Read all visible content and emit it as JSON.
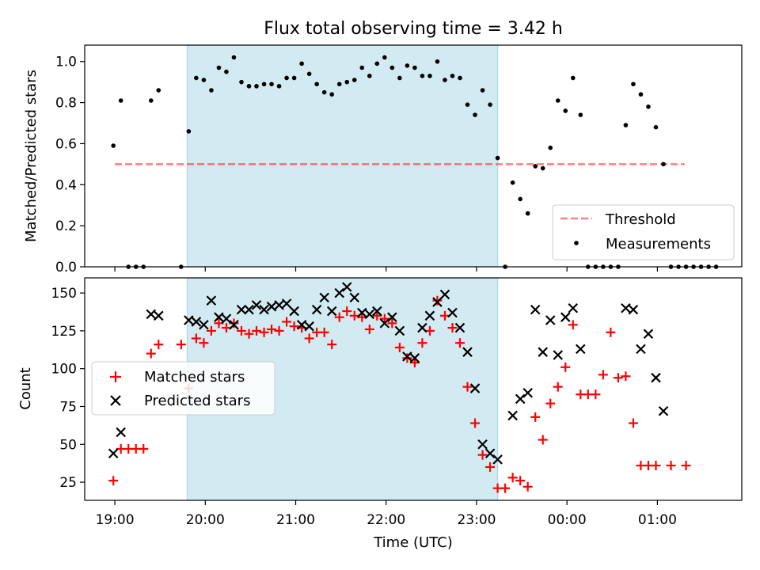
{
  "title": "Flux total observing time = 3.42 h",
  "colors": {
    "shade": "#add8e6",
    "threshold": "#ff0000",
    "measurements": "#000000",
    "matched": "#ff0000",
    "predicted": "#000000"
  },
  "chart_data": [
    {
      "type": "scatter",
      "ylabel": "Matched/Predicted stars",
      "ylim": [
        0,
        1.08
      ],
      "yticks": [
        0.0,
        0.2,
        0.4,
        0.6,
        0.8,
        1.0
      ],
      "ytick_labels": [
        "0.0",
        "0.2",
        "0.4",
        "0.6",
        "0.8",
        "1.0"
      ],
      "shaded_region": {
        "x_start": "19:48",
        "x_end": "23:14"
      },
      "legend": {
        "position": "lower right",
        "entries": [
          "Threshold",
          "Measurements"
        ]
      },
      "threshold": {
        "name": "Threshold",
        "style": "dashed line",
        "y": 0.5,
        "x_start": "19:00",
        "x_end": "01:18"
      },
      "series": [
        {
          "name": "Measurements",
          "marker": "dot",
          "points": [
            [
              "18:59",
              0.59
            ],
            [
              "19:04",
              0.81
            ],
            [
              "19:09",
              0.0
            ],
            [
              "19:14",
              0.0
            ],
            [
              "19:19",
              0.0
            ],
            [
              "19:24",
              0.81
            ],
            [
              "19:29",
              0.86
            ],
            [
              "19:44",
              0.0
            ],
            [
              "19:49",
              0.66
            ],
            [
              "19:54",
              0.92
            ],
            [
              "19:59",
              0.91
            ],
            [
              "20:04",
              0.86
            ],
            [
              "20:09",
              0.97
            ],
            [
              "20:14",
              0.95
            ],
            [
              "20:19",
              1.02
            ],
            [
              "20:24",
              0.9
            ],
            [
              "20:29",
              0.88
            ],
            [
              "20:34",
              0.88
            ],
            [
              "20:39",
              0.89
            ],
            [
              "20:44",
              0.89
            ],
            [
              "20:49",
              0.88
            ],
            [
              "20:54",
              0.92
            ],
            [
              "20:59",
              0.92
            ],
            [
              "21:04",
              0.99
            ],
            [
              "21:09",
              0.94
            ],
            [
              "21:14",
              0.89
            ],
            [
              "21:19",
              0.85
            ],
            [
              "21:24",
              0.84
            ],
            [
              "21:29",
              0.89
            ],
            [
              "21:34",
              0.9
            ],
            [
              "21:39",
              0.91
            ],
            [
              "21:44",
              0.97
            ],
            [
              "21:49",
              0.93
            ],
            [
              "21:54",
              0.99
            ],
            [
              "21:59",
              1.02
            ],
            [
              "22:04",
              0.97
            ],
            [
              "22:09",
              0.92
            ],
            [
              "22:14",
              0.98
            ],
            [
              "22:19",
              0.97
            ],
            [
              "22:24",
              0.93
            ],
            [
              "22:29",
              0.93
            ],
            [
              "22:34",
              1.0
            ],
            [
              "22:39",
              0.91
            ],
            [
              "22:44",
              0.93
            ],
            [
              "22:49",
              0.92
            ],
            [
              "22:54",
              0.79
            ],
            [
              "22:59",
              0.74
            ],
            [
              "23:04",
              0.86
            ],
            [
              "23:09",
              0.79
            ],
            [
              "23:14",
              0.53
            ],
            [
              "23:19",
              0.0
            ],
            [
              "23:24",
              0.41
            ],
            [
              "23:29",
              0.33
            ],
            [
              "23:34",
              0.26
            ],
            [
              "23:39",
              0.49
            ],
            [
              "23:44",
              0.48
            ],
            [
              "23:49",
              0.58
            ],
            [
              "23:54",
              0.81
            ],
            [
              "23:59",
              0.76
            ],
            [
              "00:04",
              0.92
            ],
            [
              "00:09",
              0.74
            ],
            [
              "00:14",
              0.0
            ],
            [
              "00:19",
              0.0
            ],
            [
              "00:24",
              0.0
            ],
            [
              "00:29",
              0.0
            ],
            [
              "00:34",
              0.0
            ],
            [
              "00:39",
              0.69
            ],
            [
              "00:44",
              0.89
            ],
            [
              "00:49",
              0.84
            ],
            [
              "00:54",
              0.78
            ],
            [
              "00:59",
              0.68
            ],
            [
              "01:04",
              0.5
            ],
            [
              "01:09",
              0.0
            ],
            [
              "01:14",
              0.0
            ],
            [
              "01:19",
              0.0
            ],
            [
              "01:24",
              0.0
            ],
            [
              "01:29",
              0.0
            ],
            [
              "01:34",
              0.0
            ],
            [
              "01:39",
              0.0
            ]
          ]
        }
      ]
    },
    {
      "type": "scatter",
      "xlabel": "Time (UTC)",
      "ylabel": "Count",
      "ylim": [
        13,
        160
      ],
      "yticks": [
        25,
        50,
        75,
        100,
        125,
        150
      ],
      "xticks": [
        "19:00",
        "20:00",
        "21:00",
        "22:00",
        "23:00",
        "00:00",
        "01:00"
      ],
      "xlim": [
        "18:40",
        "01:56"
      ],
      "shaded_region": {
        "x_start": "19:48",
        "x_end": "23:14"
      },
      "legend": {
        "position": "center left",
        "entries": [
          "Matched stars",
          "Predicted stars"
        ]
      },
      "series": [
        {
          "name": "Matched stars",
          "marker": "plus",
          "points": [
            [
              "18:59",
              26
            ],
            [
              "19:04",
              47
            ],
            [
              "19:09",
              47
            ],
            [
              "19:14",
              47
            ],
            [
              "19:19",
              47
            ],
            [
              "19:24",
              110
            ],
            [
              "19:29",
              116
            ],
            [
              "19:44",
              116
            ],
            [
              "19:49",
              87
            ],
            [
              "19:54",
              120
            ],
            [
              "19:59",
              117
            ],
            [
              "20:04",
              125
            ],
            [
              "20:09",
              130
            ],
            [
              "20:14",
              127
            ],
            [
              "20:19",
              130
            ],
            [
              "20:24",
              125
            ],
            [
              "20:29",
              123
            ],
            [
              "20:34",
              125
            ],
            [
              "20:39",
              124
            ],
            [
              "20:44",
              126
            ],
            [
              "20:49",
              125
            ],
            [
              "20:54",
              131
            ],
            [
              "20:59",
              128
            ],
            [
              "21:04",
              127
            ],
            [
              "21:09",
              120
            ],
            [
              "21:14",
              124
            ],
            [
              "21:19",
              124
            ],
            [
              "21:24",
              116
            ],
            [
              "21:29",
              134
            ],
            [
              "21:34",
              138
            ],
            [
              "21:39",
              135
            ],
            [
              "21:44",
              134
            ],
            [
              "21:49",
              126
            ],
            [
              "21:54",
              135
            ],
            [
              "21:59",
              133
            ],
            [
              "22:04",
              130
            ],
            [
              "22:09",
              114
            ],
            [
              "22:14",
              107
            ],
            [
              "22:19",
              104
            ],
            [
              "22:24",
              117
            ],
            [
              "22:29",
              125
            ],
            [
              "22:34",
              145
            ],
            [
              "22:39",
              135
            ],
            [
              "22:44",
              127
            ],
            [
              "22:49",
              117
            ],
            [
              "22:54",
              88
            ],
            [
              "22:59",
              64
            ],
            [
              "23:04",
              43
            ],
            [
              "23:09",
              35
            ],
            [
              "23:14",
              21
            ],
            [
              "23:19",
              21
            ],
            [
              "23:24",
              28
            ],
            [
              "23:29",
              26
            ],
            [
              "23:34",
              22
            ],
            [
              "23:39",
              68
            ],
            [
              "23:44",
              53
            ],
            [
              "23:49",
              77
            ],
            [
              "23:54",
              88
            ],
            [
              "23:59",
              101
            ],
            [
              "00:04",
              129
            ],
            [
              "00:09",
              83
            ],
            [
              "00:14",
              83
            ],
            [
              "00:19",
              83
            ],
            [
              "00:24",
              96
            ],
            [
              "00:29",
              124
            ],
            [
              "00:34",
              94
            ],
            [
              "00:39",
              95
            ],
            [
              "00:44",
              64
            ],
            [
              "00:49",
              36
            ],
            [
              "00:54",
              36
            ],
            [
              "00:59",
              36
            ],
            [
              "01:09",
              36
            ],
            [
              "01:19",
              36
            ]
          ]
        },
        {
          "name": "Predicted stars",
          "marker": "x",
          "points": [
            [
              "18:59",
              44
            ],
            [
              "19:04",
              58
            ],
            [
              "19:24",
              136
            ],
            [
              "19:29",
              135
            ],
            [
              "19:49",
              132
            ],
            [
              "19:54",
              131
            ],
            [
              "19:59",
              129
            ],
            [
              "20:04",
              145
            ],
            [
              "20:09",
              134
            ],
            [
              "20:14",
              133
            ],
            [
              "20:19",
              129
            ],
            [
              "20:24",
              139
            ],
            [
              "20:29",
              139
            ],
            [
              "20:34",
              142
            ],
            [
              "20:39",
              139
            ],
            [
              "20:44",
              141
            ],
            [
              "20:49",
              142
            ],
            [
              "20:54",
              143
            ],
            [
              "20:59",
              138
            ],
            [
              "21:04",
              129
            ],
            [
              "21:09",
              128
            ],
            [
              "21:14",
              139
            ],
            [
              "21:19",
              147
            ],
            [
              "21:24",
              138
            ],
            [
              "21:29",
              150
            ],
            [
              "21:34",
              154
            ],
            [
              "21:39",
              147
            ],
            [
              "21:44",
              137
            ],
            [
              "21:49",
              136
            ],
            [
              "21:54",
              138
            ],
            [
              "21:59",
              130
            ],
            [
              "22:04",
              134
            ],
            [
              "22:09",
              125
            ],
            [
              "22:14",
              108
            ],
            [
              "22:19",
              107
            ],
            [
              "22:24",
              127
            ],
            [
              "22:29",
              135
            ],
            [
              "22:34",
              144
            ],
            [
              "22:39",
              149
            ],
            [
              "22:44",
              137
            ],
            [
              "22:49",
              127
            ],
            [
              "22:54",
              111
            ],
            [
              "22:59",
              87
            ],
            [
              "23:04",
              50
            ],
            [
              "23:09",
              44
            ],
            [
              "23:14",
              40
            ],
            [
              "23:24",
              69
            ],
            [
              "23:29",
              80
            ],
            [
              "23:34",
              84
            ],
            [
              "23:39",
              139
            ],
            [
              "23:44",
              111
            ],
            [
              "23:49",
              132
            ],
            [
              "23:54",
              109
            ],
            [
              "23:59",
              134
            ],
            [
              "00:04",
              140
            ],
            [
              "00:09",
              113
            ],
            [
              "00:39",
              140
            ],
            [
              "00:44",
              139
            ],
            [
              "00:49",
              113
            ],
            [
              "00:54",
              123
            ],
            [
              "00:59",
              94
            ],
            [
              "01:04",
              72
            ]
          ]
        }
      ]
    }
  ]
}
